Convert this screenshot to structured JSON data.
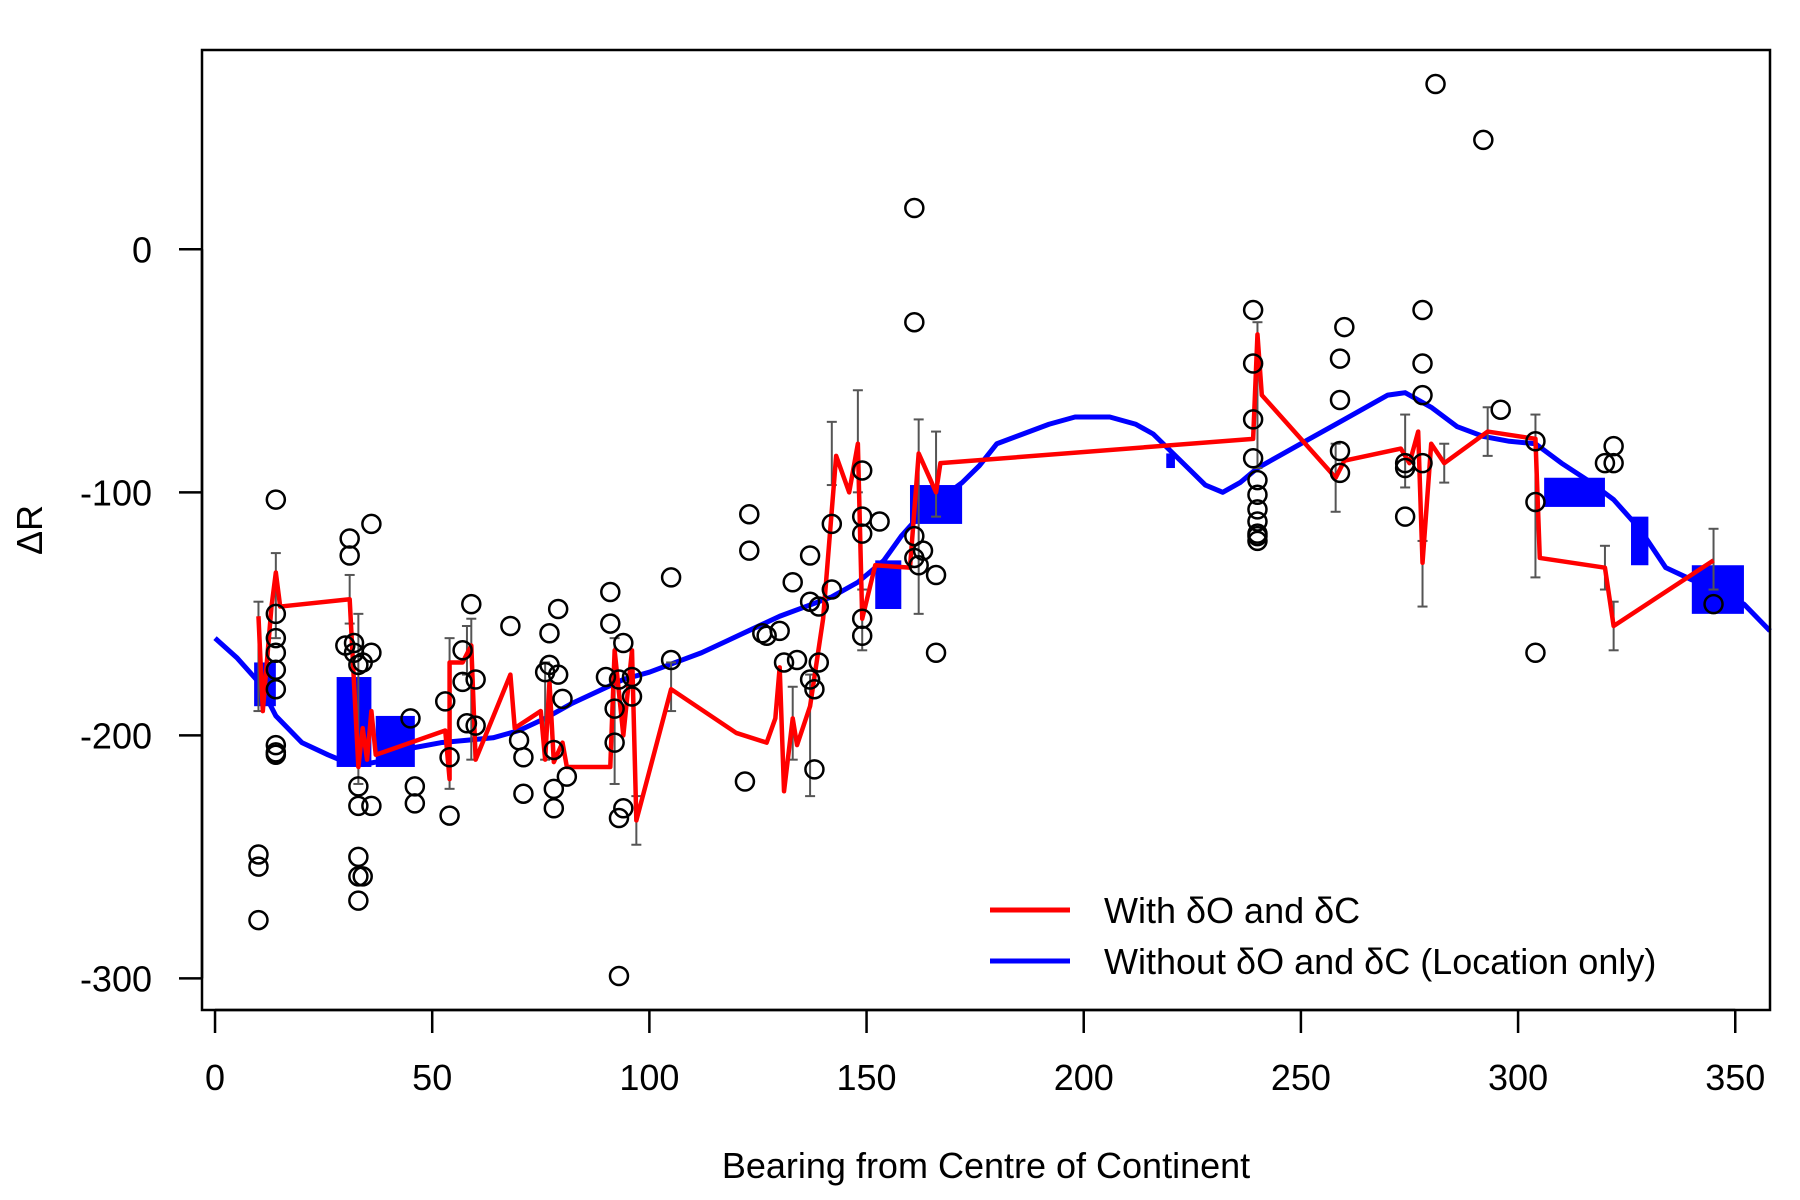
{
  "chart_data": {
    "type": "line",
    "title": "",
    "xlabel": "Bearing from Centre of Continent",
    "ylabel": "ΔR",
    "xlim": [
      -3,
      358
    ],
    "ylim": [
      -313,
      82
    ],
    "x_ticks": [
      0,
      50,
      100,
      150,
      200,
      250,
      300,
      350
    ],
    "y_ticks": [
      0,
      -100,
      -200,
      -300
    ],
    "grid": false,
    "legend": {
      "placement": "bottom-right",
      "entries": [
        {
          "label": "With δO and δC",
          "color": "#ff0000"
        },
        {
          "label": "Without δO and δC (Location only)",
          "color": "#0000ff"
        }
      ]
    },
    "series": [
      {
        "name": "Without δO and δC (Location only)",
        "color": "#0000ff",
        "points": [
          [
            0,
            -160
          ],
          [
            5,
            -168
          ],
          [
            10,
            -178
          ],
          [
            14,
            -192
          ],
          [
            20,
            -203
          ],
          [
            26,
            -208
          ],
          [
            30,
            -211
          ],
          [
            34,
            -212
          ],
          [
            40,
            -210
          ],
          [
            46,
            -205
          ],
          [
            52,
            -203
          ],
          [
            58,
            -202
          ],
          [
            64,
            -201
          ],
          [
            70,
            -198
          ],
          [
            76,
            -193
          ],
          [
            82,
            -187
          ],
          [
            88,
            -182
          ],
          [
            94,
            -177
          ],
          [
            100,
            -174
          ],
          [
            106,
            -170
          ],
          [
            112,
            -166
          ],
          [
            118,
            -161
          ],
          [
            124,
            -156
          ],
          [
            130,
            -151
          ],
          [
            136,
            -147
          ],
          [
            142,
            -143
          ],
          [
            148,
            -137
          ],
          [
            154,
            -128
          ],
          [
            158,
            -118
          ],
          [
            162,
            -110
          ],
          [
            166,
            -104
          ],
          [
            172,
            -96
          ],
          [
            176,
            -89
          ],
          [
            180,
            -80
          ],
          [
            186,
            -76
          ],
          [
            192,
            -72
          ],
          [
            198,
            -69
          ],
          [
            206,
            -69
          ],
          [
            212,
            -72
          ],
          [
            216,
            -76
          ],
          [
            220,
            -83
          ],
          [
            224,
            -90
          ],
          [
            228,
            -97
          ],
          [
            232,
            -100
          ],
          [
            236,
            -96
          ],
          [
            240,
            -90
          ],
          [
            246,
            -84
          ],
          [
            252,
            -78
          ],
          [
            258,
            -72
          ],
          [
            264,
            -66
          ],
          [
            270,
            -60
          ],
          [
            274,
            -59
          ],
          [
            280,
            -65
          ],
          [
            286,
            -73
          ],
          [
            292,
            -77
          ],
          [
            298,
            -79
          ],
          [
            304,
            -80
          ],
          [
            310,
            -88
          ],
          [
            316,
            -95
          ],
          [
            322,
            -103
          ],
          [
            328,
            -115
          ],
          [
            334,
            -131
          ],
          [
            340,
            -136
          ],
          [
            346,
            -140
          ],
          [
            352,
            -146
          ],
          [
            358,
            -157
          ]
        ],
        "dense_bands": [
          [
            9,
            14,
            -170,
            -188
          ],
          [
            28,
            36,
            -176,
            -213
          ],
          [
            37,
            46,
            -192,
            -213
          ],
          [
            152,
            158,
            -128,
            -148
          ],
          [
            160,
            172,
            -97,
            -113
          ],
          [
            219,
            221,
            -84,
            -90
          ],
          [
            306,
            320,
            -94,
            -106
          ],
          [
            326,
            330,
            -110,
            -130
          ],
          [
            340,
            352,
            -130,
            -150
          ]
        ]
      },
      {
        "name": "With δO and δC",
        "color": "#ff0000",
        "points": [
          [
            10,
            -151
          ],
          [
            11,
            -190
          ],
          [
            13,
            -147
          ],
          [
            14,
            -133
          ],
          [
            15,
            -147
          ],
          [
            31,
            -144
          ],
          [
            33,
            -213
          ],
          [
            34,
            -197
          ],
          [
            35,
            -210
          ],
          [
            36,
            -190
          ],
          [
            37,
            -208
          ],
          [
            53,
            -198
          ],
          [
            54,
            -218
          ],
          [
            54,
            -170
          ],
          [
            57,
            -170
          ],
          [
            59,
            -163
          ],
          [
            60,
            -210
          ],
          [
            68,
            -175
          ],
          [
            69,
            -197
          ],
          [
            75,
            -190
          ],
          [
            76,
            -210
          ],
          [
            77,
            -178
          ],
          [
            78,
            -211
          ],
          [
            80,
            -203
          ],
          [
            81,
            -213
          ],
          [
            91,
            -213
          ],
          [
            92,
            -165
          ],
          [
            94,
            -200
          ],
          [
            96,
            -165
          ],
          [
            97,
            -235
          ],
          [
            105,
            -181
          ],
          [
            120,
            -199
          ],
          [
            127,
            -203
          ],
          [
            129,
            -193
          ],
          [
            130,
            -172
          ],
          [
            131,
            -223
          ],
          [
            133,
            -193
          ],
          [
            134,
            -204
          ],
          [
            137,
            -188
          ],
          [
            140,
            -152
          ],
          [
            143,
            -85
          ],
          [
            146,
            -100
          ],
          [
            148,
            -80
          ],
          [
            149,
            -152
          ],
          [
            152,
            -130
          ],
          [
            160,
            -131
          ],
          [
            162,
            -84
          ],
          [
            166,
            -100
          ],
          [
            167,
            -88
          ],
          [
            239,
            -78
          ],
          [
            240,
            -35
          ],
          [
            241,
            -60
          ],
          [
            258,
            -94
          ],
          [
            260,
            -87
          ],
          [
            273,
            -82
          ],
          [
            275,
            -88
          ],
          [
            277,
            -75
          ],
          [
            278,
            -129
          ],
          [
            280,
            -80
          ],
          [
            283,
            -88
          ],
          [
            293,
            -75
          ],
          [
            304,
            -78
          ],
          [
            305,
            -127
          ],
          [
            320,
            -131
          ],
          [
            322,
            -155
          ],
          [
            345,
            -128
          ]
        ],
        "error_bars": [
          [
            10,
            -145,
            -190
          ],
          [
            14,
            -125,
            -160
          ],
          [
            31,
            -134,
            -154
          ],
          [
            33,
            -150,
            -220
          ],
          [
            54,
            -160,
            -222
          ],
          [
            58,
            -155,
            -175
          ],
          [
            59,
            -152,
            -210
          ],
          [
            76,
            -170,
            -210
          ],
          [
            92,
            -160,
            -220
          ],
          [
            97,
            -225,
            -245
          ],
          [
            105,
            -170,
            -190
          ],
          [
            133,
            -180,
            -210
          ],
          [
            137,
            -175,
            -225
          ],
          [
            142,
            -71,
            -97
          ],
          [
            148,
            -58,
            -100
          ],
          [
            149,
            -140,
            -165
          ],
          [
            162,
            -70,
            -150
          ],
          [
            166,
            -75,
            -110
          ],
          [
            240,
            -30,
            -90
          ],
          [
            258,
            -80,
            -108
          ],
          [
            274,
            -68,
            -98
          ],
          [
            278,
            -120,
            -147
          ],
          [
            283,
            -80,
            -96
          ],
          [
            293,
            -65,
            -85
          ],
          [
            304,
            -68,
            -135
          ],
          [
            320,
            -122,
            -140
          ],
          [
            322,
            -145,
            -165
          ],
          [
            345,
            -115,
            -140
          ]
        ]
      },
      {
        "name": "",
        "type": "scatter",
        "color": "#000000",
        "points": [
          [
            10,
            -249
          ],
          [
            10,
            -254
          ],
          [
            10,
            -276
          ],
          [
            14,
            -103
          ],
          [
            14,
            -150
          ],
          [
            14,
            -160
          ],
          [
            14,
            -166
          ],
          [
            14,
            -173
          ],
          [
            14,
            -181
          ],
          [
            14,
            -204
          ],
          [
            14,
            -207
          ],
          [
            14,
            -208
          ],
          [
            30,
            -163
          ],
          [
            31,
            -119
          ],
          [
            31,
            -126
          ],
          [
            32,
            -162
          ],
          [
            32,
            -166
          ],
          [
            33,
            -171
          ],
          [
            33,
            -221
          ],
          [
            33,
            -229
          ],
          [
            33,
            -250
          ],
          [
            33,
            -258
          ],
          [
            34,
            -170
          ],
          [
            34,
            -258
          ],
          [
            36,
            -113
          ],
          [
            36,
            -166
          ],
          [
            36,
            -229
          ],
          [
            33,
            -268
          ],
          [
            45,
            -193
          ],
          [
            46,
            -221
          ],
          [
            46,
            -228
          ],
          [
            53,
            -186
          ],
          [
            54,
            -209
          ],
          [
            54,
            -233
          ],
          [
            57,
            -165
          ],
          [
            57,
            -178
          ],
          [
            58,
            -195
          ],
          [
            59,
            -146
          ],
          [
            60,
            -177
          ],
          [
            60,
            -196
          ],
          [
            68,
            -155
          ],
          [
            70,
            -202
          ],
          [
            71,
            -209
          ],
          [
            71,
            -224
          ],
          [
            76,
            -174
          ],
          [
            77,
            -158
          ],
          [
            77,
            -171
          ],
          [
            78,
            -206
          ],
          [
            78,
            -222
          ],
          [
            78,
            -230
          ],
          [
            79,
            -148
          ],
          [
            79,
            -175
          ],
          [
            80,
            -185
          ],
          [
            81,
            -217
          ],
          [
            90,
            -176
          ],
          [
            91,
            -141
          ],
          [
            91,
            -154
          ],
          [
            92,
            -189
          ],
          [
            92,
            -203
          ],
          [
            93,
            -177
          ],
          [
            93,
            -234
          ],
          [
            93,
            -299
          ],
          [
            94,
            -162
          ],
          [
            94,
            -230
          ],
          [
            96,
            -176
          ],
          [
            96,
            -184
          ],
          [
            105,
            -135
          ],
          [
            105,
            -169
          ],
          [
            122,
            -219
          ],
          [
            123,
            -109
          ],
          [
            123,
            -124
          ],
          [
            126,
            -158
          ],
          [
            127,
            -159
          ],
          [
            130,
            -157
          ],
          [
            131,
            -170
          ],
          [
            133,
            -137
          ],
          [
            134,
            -169
          ],
          [
            137,
            -126
          ],
          [
            137,
            -145
          ],
          [
            137,
            -177
          ],
          [
            138,
            -181
          ],
          [
            138,
            -214
          ],
          [
            139,
            -147
          ],
          [
            139,
            -170
          ],
          [
            142,
            -113
          ],
          [
            142,
            -140
          ],
          [
            149,
            -91
          ],
          [
            149,
            -110
          ],
          [
            149,
            -117
          ],
          [
            149,
            -152
          ],
          [
            149,
            -159
          ],
          [
            153,
            -112
          ],
          [
            161,
            17
          ],
          [
            161,
            -30
          ],
          [
            161,
            -118
          ],
          [
            161,
            -127
          ],
          [
            162,
            -130
          ],
          [
            163,
            -124
          ],
          [
            166,
            -134
          ],
          [
            166,
            -166
          ],
          [
            239,
            -25
          ],
          [
            239,
            -47
          ],
          [
            239,
            -70
          ],
          [
            239,
            -86
          ],
          [
            240,
            -95
          ],
          [
            240,
            -101
          ],
          [
            240,
            -107
          ],
          [
            240,
            -112
          ],
          [
            240,
            -117
          ],
          [
            240,
            -120
          ],
          [
            240,
            -118
          ],
          [
            259,
            -62
          ],
          [
            259,
            -83
          ],
          [
            259,
            -92
          ],
          [
            259,
            -45
          ],
          [
            260,
            -32
          ],
          [
            274,
            -88
          ],
          [
            274,
            -90
          ],
          [
            274,
            -110
          ],
          [
            278,
            -25
          ],
          [
            278,
            -47
          ],
          [
            278,
            -60
          ],
          [
            278,
            -88
          ],
          [
            281,
            68
          ],
          [
            292,
            45
          ],
          [
            296,
            -66
          ],
          [
            304,
            -79
          ],
          [
            304,
            -104
          ],
          [
            304,
            -166
          ],
          [
            320,
            -88
          ],
          [
            322,
            -81
          ],
          [
            322,
            -88
          ],
          [
            345,
            -146
          ]
        ]
      }
    ]
  }
}
